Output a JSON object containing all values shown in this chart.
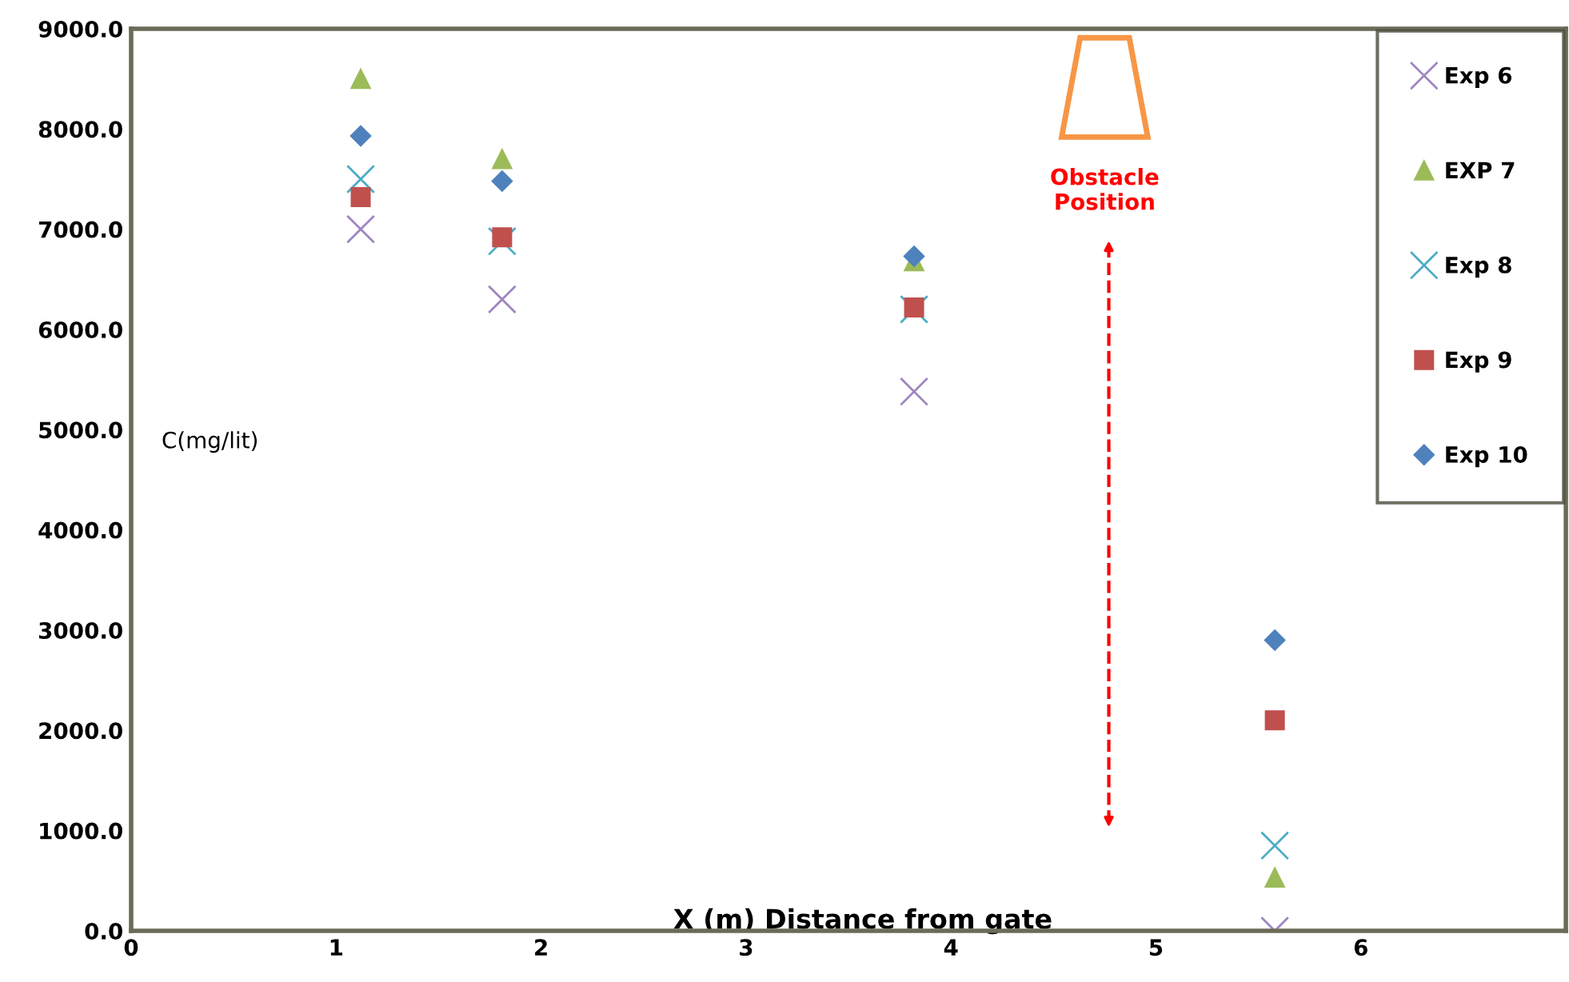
{
  "chart_data": {
    "type": "scatter",
    "xlabel": "X (m) Distance from gate",
    "ylabel": "C(mg/lit)",
    "x": [
      1.12,
      1.81,
      3.82,
      5.58
    ],
    "series": [
      {
        "name": "Exp 6",
        "color": "#9e86c0",
        "marker": "cross",
        "values": [
          7000,
          6300,
          5380,
          0
        ]
      },
      {
        "name": "EXP 7",
        "color": "#9bbb59",
        "marker": "triangle",
        "values": [
          8500,
          7700,
          6680,
          530
        ]
      },
      {
        "name": "Exp 8",
        "color": "#4bacc6",
        "marker": "cross",
        "values": [
          7500,
          6880,
          6200,
          850
        ]
      },
      {
        "name": "Exp 9",
        "color": "#c0504d",
        "marker": "square",
        "values": [
          7320,
          6920,
          6220,
          2100
        ]
      },
      {
        "name": "Exp 10",
        "color": "#4f81bd",
        "marker": "diamond",
        "values": [
          7930,
          7480,
          6730,
          2900
        ]
      }
    ],
    "xlim": [
      0,
      7
    ],
    "xticks": [
      0,
      1,
      2,
      3,
      4,
      5,
      6
    ],
    "ylim": [
      0,
      9000
    ],
    "yticks": [
      {
        "value": 0,
        "label": "0.0"
      },
      {
        "value": 1000,
        "label": "1000.0"
      },
      {
        "value": 2000,
        "label": "2000.0"
      },
      {
        "value": 3000,
        "label": "3000.0"
      },
      {
        "value": 4000,
        "label": "4000.0"
      },
      {
        "value": 5000,
        "label": "5000.0"
      },
      {
        "value": 6000,
        "label": "6000.0"
      },
      {
        "value": 7000,
        "label": "7000.0"
      },
      {
        "value": 8000,
        "label": "8000.0"
      },
      {
        "value": 9000,
        "label": "9000.0"
      }
    ],
    "ref_lines": [
      {
        "axis": "x",
        "value": 4.77,
        "label": "Obstacle Position",
        "color": "#ff0000",
        "line_style": "dashed"
      }
    ],
    "grid": false,
    "legend": "top right"
  }
}
